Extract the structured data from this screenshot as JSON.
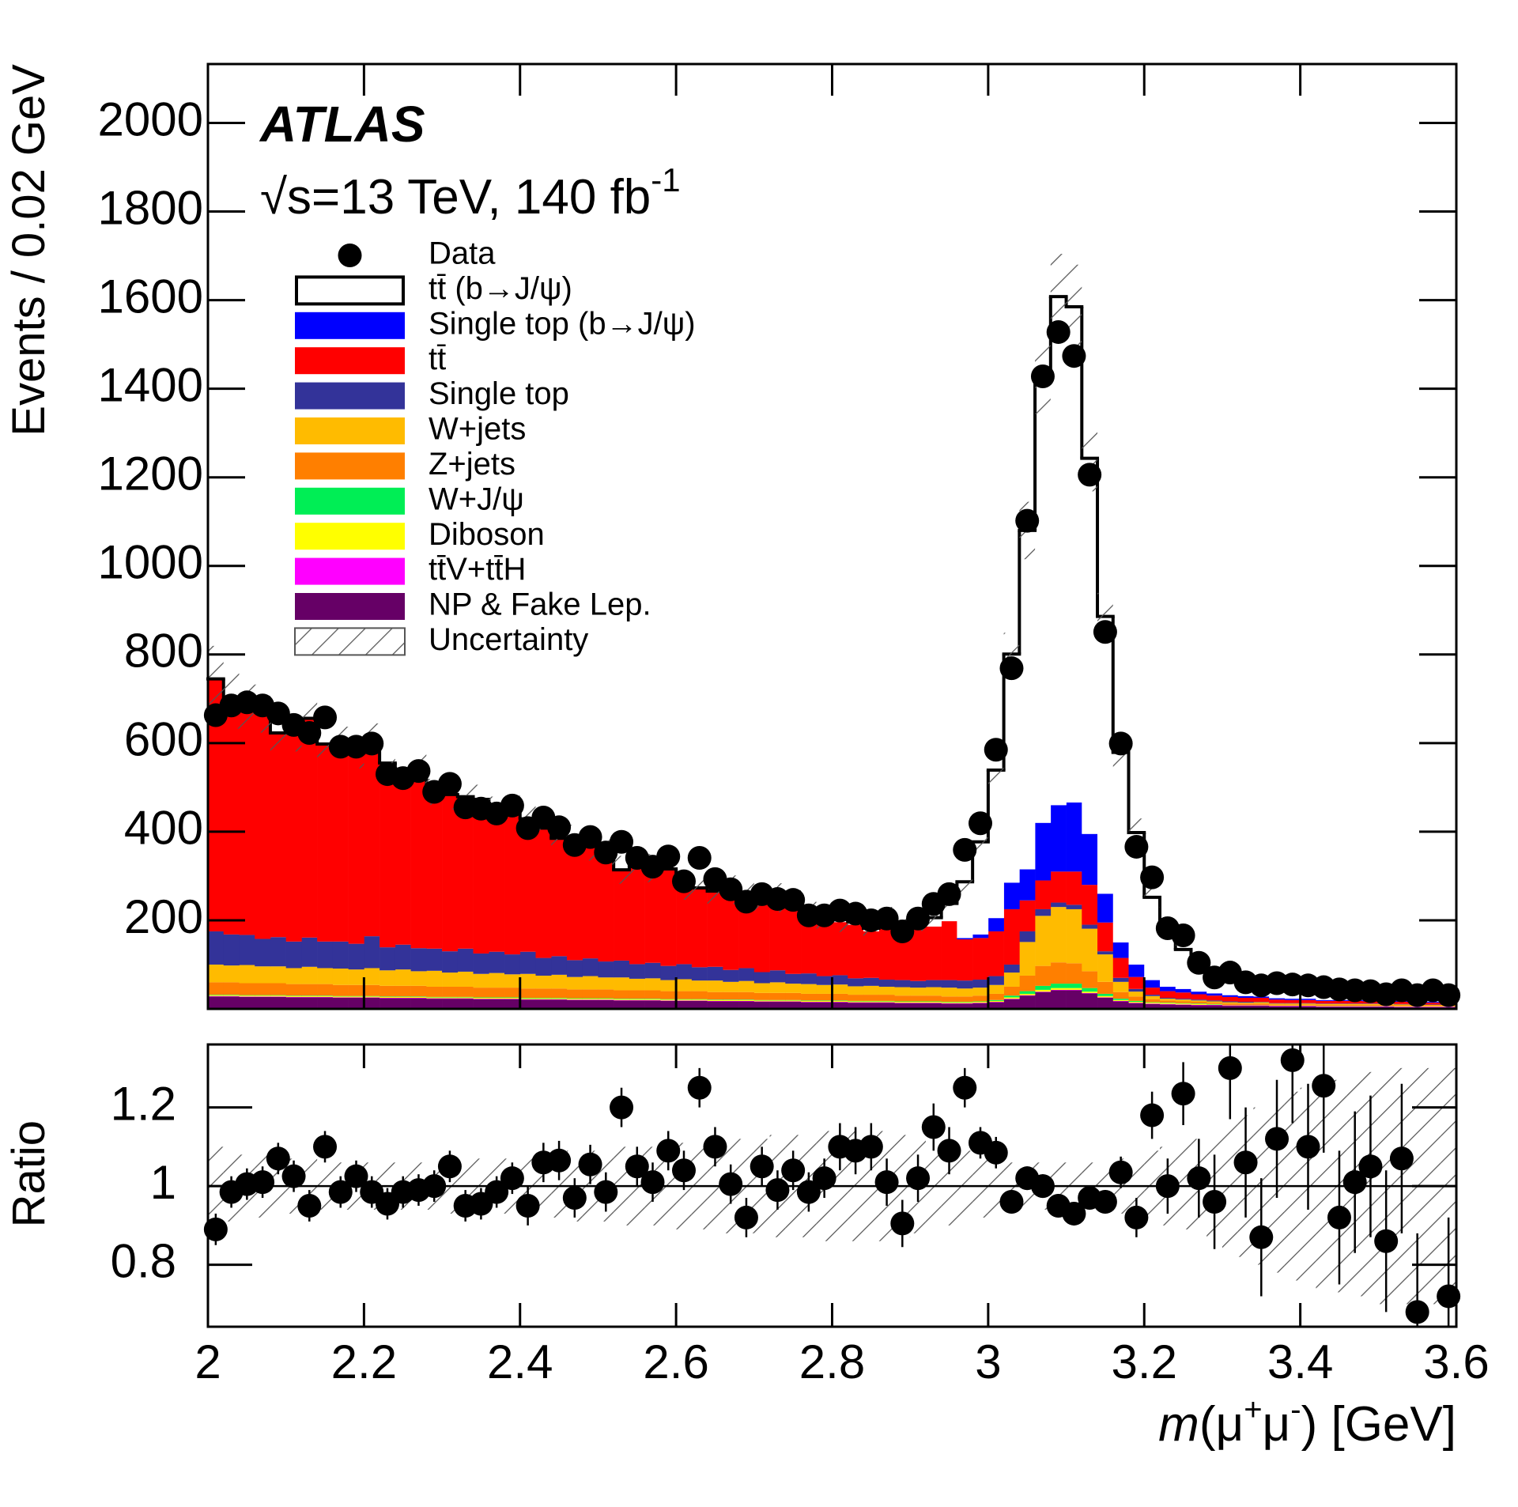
{
  "chart_data": {
    "type": "histogram",
    "annotations": [
      "ATLAS",
      "√s=13 TeV, 140 fb",
      "-1"
    ],
    "ylabel": "Events / 0.02 GeV",
    "xlabel": [
      "m",
      "(μ",
      "+",
      "μ",
      "-",
      ") [GeV]"
    ],
    "xlim": [
      2,
      3.6
    ],
    "xticks": [
      2,
      2.2,
      2.4,
      2.6,
      2.8,
      3,
      3.2,
      3.4,
      3.6
    ],
    "ylim": [
      0,
      2133
    ],
    "yticks": [
      200,
      400,
      600,
      800,
      1000,
      1200,
      1400,
      1600,
      1800,
      2000
    ],
    "bins": [
      2,
      2.02,
      2.04,
      2.06,
      2.08,
      2.1,
      2.12,
      2.14,
      2.16,
      2.18,
      2.2,
      2.22,
      2.24,
      2.26,
      2.28,
      2.3,
      2.32,
      2.34,
      2.36,
      2.38,
      2.4,
      2.42,
      2.44,
      2.46,
      2.48,
      2.5,
      2.52,
      2.54,
      2.56,
      2.58,
      2.6,
      2.62,
      2.64,
      2.66,
      2.68,
      2.7,
      2.72,
      2.74,
      2.76,
      2.78,
      2.8,
      2.82,
      2.84,
      2.86,
      2.88,
      2.9,
      2.92,
      2.94,
      2.96,
      2.98,
      3,
      3.02,
      3.04,
      3.06,
      3.08,
      3.1,
      3.12,
      3.14,
      3.16,
      3.18,
      3.2,
      3.22,
      3.24,
      3.26,
      3.28,
      3.3,
      3.32,
      3.34,
      3.36,
      3.38,
      3.4,
      3.42,
      3.44,
      3.46,
      3.48,
      3.5,
      3.52,
      3.54,
      3.56,
      3.58,
      3.6
    ],
    "data": {
      "name": "Data",
      "color": "#000000",
      "values": [
        663,
        685,
        692,
        685,
        667,
        641,
        623,
        658,
        592,
        592,
        599,
        530,
        521,
        537,
        490,
        508,
        455,
        452,
        441,
        459,
        408,
        432,
        410,
        370,
        388,
        353,
        377,
        341,
        321,
        344,
        288,
        341,
        293,
        270,
        242,
        259,
        248,
        246,
        211,
        211,
        222,
        215,
        200,
        204,
        175,
        204,
        237,
        259,
        359,
        419,
        585,
        769,
        1102,
        1428,
        1528,
        1474,
        1206,
        851,
        599,
        366,
        297,
        182,
        166,
        104,
        71,
        82,
        60,
        53,
        58,
        55,
        53,
        49,
        44,
        42,
        40,
        33,
        42,
        31,
        42,
        31
      ]
    },
    "series": [
      {
        "name": "tt̄ (b→J/ψ)",
        "color": "#ffffff",
        "style": "outline",
        "values": [
          0,
          0,
          0,
          0,
          0,
          0,
          0,
          0,
          0,
          0,
          0,
          0,
          0,
          0,
          0,
          0,
          0,
          0,
          0,
          0,
          0,
          0,
          0,
          0,
          0,
          0,
          0,
          0,
          0,
          0,
          0,
          1,
          1,
          2,
          2,
          3,
          4,
          4,
          5,
          5,
          6,
          7,
          7,
          8,
          8,
          9,
          20,
          40,
          127,
          209,
          334,
          516,
          765,
          1008,
          1148,
          1119,
          848,
          626,
          429,
          298,
          187,
          132,
          89,
          63,
          39,
          32,
          28,
          33,
          28,
          19,
          25,
          19,
          28,
          22,
          19,
          19,
          21,
          29,
          24,
          27
        ]
      },
      {
        "name": "Single top (b→J/ψ)",
        "color": "#0000ff",
        "values": [
          0,
          0,
          0,
          0,
          0,
          0,
          0,
          0,
          0,
          0,
          0,
          0,
          0,
          0,
          0,
          0,
          0,
          0,
          0,
          0,
          0,
          0,
          0,
          0,
          0,
          0,
          0,
          0,
          0,
          0,
          0,
          0,
          0,
          0,
          0,
          0,
          0,
          0,
          0,
          0,
          0,
          0,
          0,
          0,
          0,
          0,
          0,
          0,
          3,
          8,
          30,
          60,
          70,
          130,
          150,
          156,
          115,
          65,
          35,
          28,
          17,
          10,
          8,
          6,
          5,
          4,
          4,
          3,
          3,
          3,
          3,
          2,
          2,
          2,
          2,
          2,
          2,
          2,
          2,
          2
        ]
      },
      {
        "name": "tt̄",
        "color": "#ff0000",
        "values": [
          570,
          527,
          522,
          520,
          461,
          473,
          495,
          446,
          449,
          431,
          444,
          416,
          384,
          405,
          354,
          354,
          343,
          348,
          319,
          327,
          300,
          293,
          266,
          271,
          254,
          251,
          205,
          224,
          214,
          219,
          176,
          178,
          170,
          179,
          169,
          161,
          160,
          154,
          129,
          128,
          120,
          121,
          105,
          128,
          120,
          128,
          121,
          133,
          93,
          94,
          101,
          125,
          70,
          65,
          70,
          75,
          90,
          65,
          45,
          27,
          16,
          15,
          14,
          12,
          11,
          10,
          9,
          9,
          8,
          7,
          7,
          6,
          6,
          6,
          5,
          5,
          5,
          5,
          4,
          4
        ]
      },
      {
        "name": "Single top",
        "color": "#333399",
        "values": [
          75,
          70,
          68,
          62,
          66,
          60,
          66,
          60,
          61,
          58,
          72,
          52,
          56,
          52,
          50,
          48,
          52,
          46,
          48,
          45,
          50,
          40,
          42,
          38,
          40,
          36,
          38,
          33,
          35,
          32,
          34,
          30,
          31,
          27,
          29,
          25,
          27,
          22,
          24,
          20,
          21,
          18,
          18,
          16,
          16,
          15,
          16,
          17,
          18,
          18,
          20,
          18,
          24,
          15,
          10,
          10,
          9,
          7,
          9,
          6,
          3,
          2,
          2,
          2,
          2,
          2,
          2,
          1,
          1,
          1,
          1,
          1,
          1,
          1,
          1,
          1,
          1,
          1,
          1,
          1
        ]
      },
      {
        "name": "W+jets",
        "color": "#ffbb00",
        "values": [
          40,
          38,
          41,
          38,
          38,
          36,
          39,
          36,
          37,
          35,
          38,
          35,
          37,
          33,
          36,
          32,
          34,
          31,
          33,
          30,
          33,
          29,
          31,
          28,
          30,
          27,
          29,
          26,
          27,
          25,
          27,
          24,
          26,
          23,
          25,
          22,
          24,
          21,
          22,
          20,
          21,
          19,
          20,
          18,
          19,
          18,
          19,
          20,
          18,
          18,
          20,
          32,
          76,
          113,
          125,
          122,
          96,
          62,
          23,
          11,
          7,
          4,
          4,
          3,
          3,
          3,
          2,
          3,
          2,
          2,
          2,
          2,
          2,
          2,
          2,
          2,
          2,
          1,
          1,
          1
        ]
      },
      {
        "name": "Z+jets",
        "color": "#ff7f00",
        "values": [
          28,
          28,
          27,
          27,
          27,
          26,
          26,
          26,
          25,
          25,
          25,
          24,
          24,
          24,
          23,
          23,
          23,
          22,
          22,
          22,
          21,
          21,
          21,
          20,
          20,
          20,
          19,
          19,
          19,
          18,
          18,
          18,
          17,
          17,
          17,
          16,
          16,
          16,
          15,
          15,
          15,
          14,
          14,
          14,
          13,
          13,
          13,
          12,
          12,
          13,
          14,
          20,
          35,
          45,
          48,
          46,
          38,
          27,
          15,
          10,
          7,
          5,
          4,
          4,
          3,
          3,
          3,
          3,
          2,
          2,
          2,
          2,
          2,
          2,
          2,
          2,
          2,
          2,
          2,
          2
        ]
      },
      {
        "name": "W+J/ψ",
        "color": "#00ee55",
        "values": [
          1,
          1,
          1,
          1,
          1,
          1,
          1,
          1,
          1,
          1,
          1,
          1,
          1,
          1,
          1,
          1,
          1,
          1,
          1,
          1,
          1,
          1,
          1,
          1,
          1,
          1,
          1,
          1,
          1,
          1,
          1,
          1,
          1,
          1,
          1,
          1,
          1,
          1,
          1,
          1,
          1,
          1,
          1,
          1,
          1,
          1,
          1,
          1,
          1,
          1,
          2,
          4,
          6,
          9,
          10,
          10,
          8,
          5,
          3,
          2,
          1,
          1,
          1,
          1,
          1,
          0,
          0,
          0,
          0,
          0,
          0,
          0,
          0,
          0,
          0,
          0,
          0,
          0,
          0,
          0
        ]
      },
      {
        "name": "Diboson",
        "color": "#ffff00",
        "values": [
          2,
          2,
          2,
          2,
          2,
          2,
          2,
          2,
          2,
          2,
          2,
          2,
          2,
          2,
          2,
          2,
          2,
          2,
          2,
          2,
          2,
          2,
          2,
          2,
          2,
          2,
          2,
          2,
          2,
          2,
          2,
          2,
          2,
          2,
          2,
          2,
          2,
          2,
          2,
          2,
          2,
          2,
          2,
          2,
          2,
          2,
          2,
          2,
          2,
          2,
          2,
          3,
          3,
          4,
          4,
          4,
          3,
          3,
          2,
          2,
          2,
          2,
          2,
          2,
          1,
          1,
          1,
          1,
          1,
          1,
          1,
          1,
          1,
          1,
          1,
          1,
          1,
          1,
          1,
          1
        ]
      },
      {
        "name": "tt̄V+tt̄H",
        "color": "#ff00ff",
        "values": [
          1,
          1,
          1,
          1,
          1,
          1,
          1,
          1,
          1,
          1,
          1,
          1,
          1,
          1,
          1,
          1,
          1,
          1,
          1,
          1,
          1,
          1,
          1,
          1,
          1,
          1,
          1,
          1,
          1,
          1,
          1,
          1,
          1,
          1,
          1,
          1,
          1,
          1,
          1,
          1,
          1,
          1,
          1,
          1,
          1,
          1,
          1,
          1,
          1,
          1,
          1,
          1,
          1,
          1,
          1,
          1,
          1,
          1,
          1,
          1,
          1,
          1,
          1,
          1,
          1,
          1,
          1,
          1,
          1,
          1,
          1,
          1,
          1,
          1,
          1,
          1,
          1,
          1,
          1,
          1
        ]
      },
      {
        "name": "NP & Fake Lep.",
        "color": "#660066",
        "values": [
          28,
          28,
          27,
          27,
          27,
          26,
          26,
          26,
          25,
          25,
          25,
          24,
          24,
          24,
          23,
          23,
          23,
          22,
          22,
          22,
          21,
          21,
          21,
          20,
          20,
          20,
          19,
          19,
          19,
          18,
          18,
          18,
          17,
          17,
          17,
          16,
          16,
          16,
          15,
          15,
          15,
          14,
          14,
          14,
          13,
          13,
          13,
          12,
          12,
          13,
          15,
          22,
          30,
          38,
          42,
          42,
          35,
          25,
          17,
          13,
          11,
          10,
          9,
          8,
          8,
          7,
          7,
          7,
          6,
          6,
          6,
          5,
          5,
          5,
          5,
          5,
          4,
          4,
          4,
          4
        ]
      }
    ],
    "uncertainty": {
      "name": "Uncertainty",
      "color": "#555555",
      "values": [
        0.1,
        0.09,
        0.08,
        0.08,
        0.07,
        0.07,
        0.07,
        0.06,
        0.06,
        0.06,
        0.06,
        0.06,
        0.06,
        0.06,
        0.06,
        0.07,
        0.07,
        0.07,
        0.07,
        0.07,
        0.08,
        0.08,
        0.08,
        0.09,
        0.09,
        0.09,
        0.1,
        0.1,
        0.1,
        0.1,
        0.11,
        0.11,
        0.11,
        0.12,
        0.12,
        0.12,
        0.13,
        0.13,
        0.13,
        0.14,
        0.14,
        0.14,
        0.14,
        0.14,
        0.13,
        0.12,
        0.11,
        0.1,
        0.09,
        0.08,
        0.07,
        0.06,
        0.06,
        0.06,
        0.06,
        0.06,
        0.06,
        0.06,
        0.07,
        0.08,
        0.09,
        0.1,
        0.11,
        0.12,
        0.14,
        0.16,
        0.18,
        0.2,
        0.22,
        0.24,
        0.25,
        0.26,
        0.27,
        0.28,
        0.29,
        0.3,
        0.3,
        0.3,
        0.3,
        0.3
      ]
    },
    "ratio": {
      "ylabel": "Ratio",
      "ylim": [
        0.6425,
        1.36
      ],
      "yticks": [
        0.8,
        1,
        1.2
      ],
      "reference_line": 1,
      "values": [
        0.89,
        0.985,
        1.005,
        1.01,
        1.07,
        1.025,
        0.95,
        1.1,
        0.985,
        1.025,
        0.985,
        0.955,
        0.985,
        0.99,
        1,
        1.05,
        0.95,
        0.955,
        0.985,
        1.02,
        0.95,
        1.06,
        1.065,
        0.97,
        1.055,
        0.985,
        1.2,
        1.05,
        1.01,
        1.09,
        1.04,
        1.25,
        1.1,
        1.005,
        0.92,
        1.05,
        0.99,
        1.04,
        0.985,
        1.02,
        1.1,
        1.09,
        1.1,
        1.01,
        0.905,
        1.02,
        1.15,
        1.09,
        1.25,
        1.11,
        1.085,
        0.96,
        1.02,
        1,
        0.95,
        0.93,
        0.97,
        0.96,
        1.035,
        0.92,
        1.18,
        1,
        1.235,
        1.02,
        0.96,
        1.3,
        1.06,
        0.87,
        1.12,
        1.32,
        1.1,
        1.255,
        0.92,
        1.01,
        1.05,
        0.86,
        1.07,
        0.68,
        null,
        0.72
      ],
      "errors": [
        0.04,
        0.04,
        0.04,
        0.04,
        0.04,
        0.04,
        0.04,
        0.04,
        0.04,
        0.04,
        0.04,
        0.04,
        0.04,
        0.04,
        0.04,
        0.04,
        0.04,
        0.04,
        0.04,
        0.04,
        0.05,
        0.05,
        0.05,
        0.05,
        0.05,
        0.05,
        0.05,
        0.05,
        0.05,
        0.05,
        0.05,
        0.05,
        0.05,
        0.05,
        0.05,
        0.05,
        0.05,
        0.05,
        0.05,
        0.05,
        0.06,
        0.06,
        0.06,
        0.06,
        0.06,
        0.06,
        0.06,
        0.06,
        0.05,
        0.04,
        0.04,
        0.03,
        0.03,
        0.03,
        0.03,
        0.03,
        0.03,
        0.03,
        0.04,
        0.05,
        0.06,
        0.07,
        0.08,
        0.1,
        0.12,
        0.13,
        0.14,
        0.15,
        0.15,
        0.16,
        0.16,
        0.17,
        0.17,
        0.18,
        0.18,
        0.18,
        0.19,
        0.2,
        null,
        0.2
      ]
    }
  }
}
